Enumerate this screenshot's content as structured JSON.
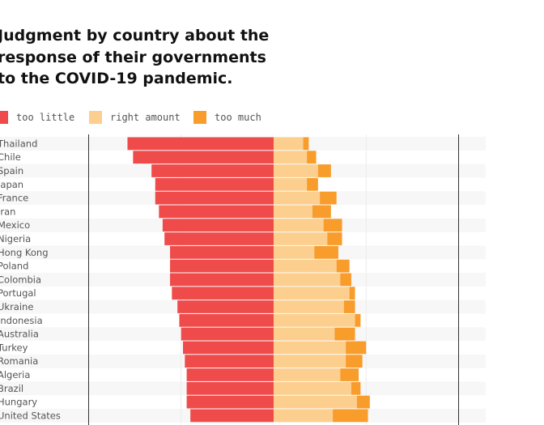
{
  "chart_data": {
    "type": "bar",
    "orientation": "horizontal",
    "stacking": "diverging",
    "title": "Judgment by country about the response of their governments to the COVID-19 pandemic.",
    "categories": [
      "Thailand",
      "Chile",
      "Spain",
      "Japan",
      "France",
      "Iran",
      "Mexico",
      "Nigeria",
      "Hong Kong",
      "Poland",
      "Colombia",
      "Portugal",
      "Ukraine",
      "Indonesia",
      "Australia",
      "Turkey",
      "Romania",
      "Algeria",
      "Brazil",
      "Hungary",
      "United States"
    ],
    "series": [
      {
        "name": "too little",
        "color": "#ef4b4b",
        "values": [
          79,
          76,
          66,
          64,
          64,
          62,
          60,
          59,
          56,
          56,
          56,
          55,
          52,
          51,
          50,
          49,
          48,
          47,
          47,
          47,
          45
        ]
      },
      {
        "name": "right amount",
        "color": "#fccf8f",
        "values": [
          16,
          18,
          24,
          18,
          25,
          21,
          27,
          29,
          22,
          34,
          36,
          41,
          38,
          44,
          33,
          39,
          39,
          36,
          42,
          45,
          32
        ]
      },
      {
        "name": "too much",
        "color": "#f89c2c",
        "values": [
          3,
          5,
          7,
          6,
          9,
          10,
          10,
          8,
          13,
          7,
          6,
          3,
          6,
          3,
          11,
          11,
          9,
          10,
          5,
          7,
          19
        ]
      }
    ],
    "unit": "%",
    "xlim": [
      -100,
      100
    ],
    "grid": true,
    "legend_position": "top-left"
  }
}
